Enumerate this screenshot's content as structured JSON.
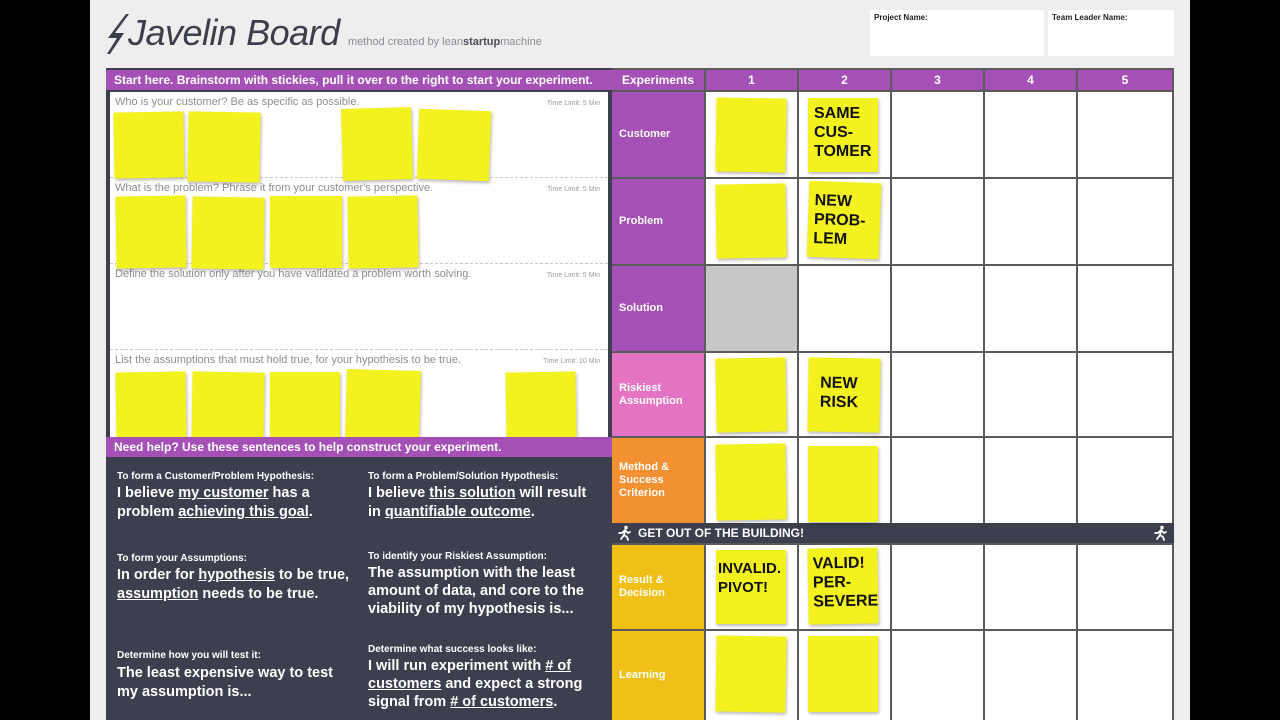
{
  "header": {
    "logo_text": "Javelin Board",
    "subtitle_prefix": "method created by lean",
    "subtitle_brand": "startup",
    "subtitle_suffix": "machine",
    "project_name_label": "Project Name:",
    "team_leader_label": "Team Leader Name:"
  },
  "left": {
    "start_bar": "Start here. Brainstorm with stickies, pull it over to the right to start your experiment.",
    "sections": [
      {
        "question": "Who is your customer? Be as specific as possible.",
        "time_limit": "Time Limit: 5 Min"
      },
      {
        "question": "What is the problem? Phrase it from your customer's perspective.",
        "time_limit": "Time Limit: 5 Min"
      },
      {
        "question": "Define the solution only after you have validated a problem worth solving.",
        "time_limit": "Time Limit: 5 Min"
      },
      {
        "question": "List the assumptions that must hold true, for your hypothesis to be true.",
        "time_limit": "Time Limit: 10 Min"
      }
    ],
    "help_bar": "Need help? Use these sentences to help construct your experiment.",
    "guides": [
      {
        "heading": "To form a Customer/Problem Hypothesis:",
        "t1": "I believe ",
        "u1": "my customer",
        "t2": " has a problem ",
        "u2": "achieving this goal",
        "t3": "."
      },
      {
        "heading": "To form a Problem/Solution Hypothesis:",
        "t1": "I believe ",
        "u1": "this solution",
        "t2": " will result in ",
        "u2": "quantifiable outcome",
        "t3": "."
      },
      {
        "heading": "To form your Assumptions:",
        "t1": "In order for ",
        "u1": "hypothesis",
        "t2": " to be true, ",
        "u2": "assumption",
        "t3": " needs to be true."
      },
      {
        "heading": "To identify your Riskiest Assumption:",
        "t1": "The assumption with the least amount of data, and core to the viability of my hypothesis is...",
        "u1": "",
        "t2": "",
        "u2": "",
        "t3": ""
      },
      {
        "heading": "Determine how you will test it:",
        "t1": "The least expensive way to test my assumption is...",
        "u1": "",
        "t2": "",
        "u2": "",
        "t3": ""
      },
      {
        "heading": "Determine what success looks like:",
        "t1": "I will run experiment with ",
        "u1": "# of customers",
        "t2": " and expect a strong signal from ",
        "u2": "# of customers",
        "t3": "."
      }
    ]
  },
  "grid": {
    "experiments_label": "Experiments",
    "columns": [
      "1",
      "2",
      "3",
      "4",
      "5"
    ],
    "rows": [
      {
        "label": "Customer",
        "color": "#a550b6"
      },
      {
        "label": "Problem",
        "color": "#a550b6"
      },
      {
        "label": "Solution",
        "color": "#a550b6"
      },
      {
        "label": "Riskiest Assumption",
        "color": "#e474c3"
      },
      {
        "label": "Method & Success Criterion",
        "color": "#f39031"
      },
      {
        "label": "Result & Decision",
        "color": "#f0c018"
      },
      {
        "label": "Learning",
        "color": "#f0c018"
      }
    ],
    "get_out_banner": "GET OUT OF THE BUILDING!",
    "sticky_notes": {
      "same_customer": "SAME\nCUS-\nTOMER",
      "new_problem": "NEW\nPROB-\nLEM",
      "new_risk": "NEW\nRISK",
      "invalid_pivot": "INVALID.\nPIVOT!",
      "valid_persevere": "VALID!\nPER-\nSEVERE"
    }
  },
  "colors": {
    "purple": "#a550b6",
    "pink": "#e474c3",
    "orange": "#f39031",
    "yellow": "#f0c018",
    "sticky": "#f4f21e",
    "dark": "#3d3f4f"
  }
}
